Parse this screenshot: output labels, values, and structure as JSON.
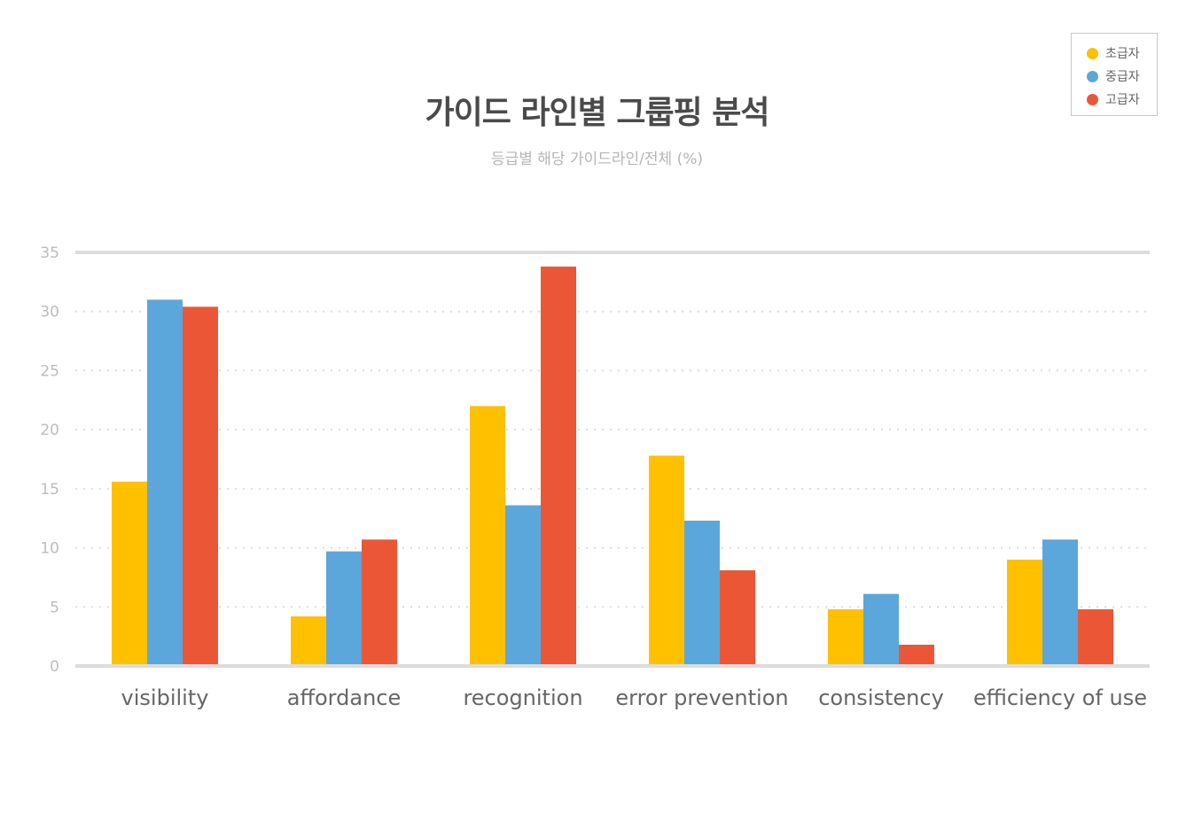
{
  "chart_data": {
    "type": "bar",
    "title": "가이드 라인별 그룹핑 분석",
    "subtitle": "등급별 해당 가이드라인/전체 (%)",
    "categories": [
      "visibility",
      "affordance",
      "recognition",
      "error prevention",
      "consistency",
      "efficiency of use"
    ],
    "series": [
      {
        "name": "초급자",
        "color": "#ffc000",
        "values": [
          15.6,
          4.2,
          22.0,
          17.8,
          4.8,
          9.0
        ]
      },
      {
        "name": "중급자",
        "color": "#5ba7db",
        "values": [
          31.0,
          9.7,
          13.6,
          12.3,
          6.1,
          10.7
        ]
      },
      {
        "name": "고급자",
        "color": "#eb5736",
        "values": [
          30.4,
          10.7,
          33.8,
          8.1,
          1.8,
          4.8
        ]
      }
    ],
    "yticks": [
      0,
      5,
      10,
      15,
      20,
      25,
      30,
      35
    ],
    "ylim": [
      0,
      35
    ],
    "grid": true,
    "legend_position": "top-right"
  }
}
